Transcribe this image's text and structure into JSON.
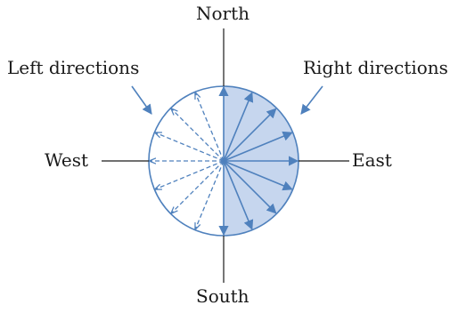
{
  "labels": {
    "north": "North",
    "south": "South",
    "east": "East",
    "west": "West",
    "left_directions": "Left directions",
    "right_directions": "Right directions"
  },
  "colors": {
    "arrow_blue": "#4f81bd",
    "right_fill": "#c6d6ee",
    "axis_line": "#1a1a1a",
    "circle_outline": "#4f81bd"
  }
}
